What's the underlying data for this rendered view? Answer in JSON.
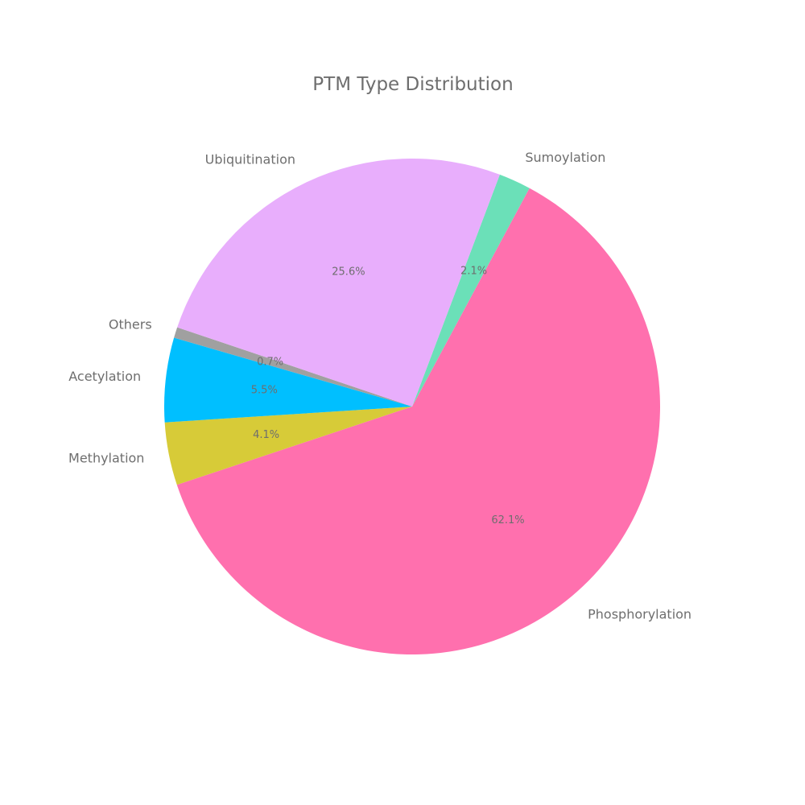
{
  "chart_data": {
    "type": "pie",
    "title": "PTM Type Distribution",
    "start_angle_deg": 69.3,
    "direction": "clockwise",
    "slices": [
      {
        "label": "Sumoylation",
        "value": 2.1,
        "pct_label": "2.1%",
        "color": "#6be0b8"
      },
      {
        "label": "Phosphorylation",
        "value": 62.1,
        "pct_label": "62.1%",
        "color": "#ff70ae"
      },
      {
        "label": "Methylation",
        "value": 4.1,
        "pct_label": "4.1%",
        "color": "#d7cb38"
      },
      {
        "label": "Acetylation",
        "value": 5.5,
        "pct_label": "5.5%",
        "color": "#00bfff"
      },
      {
        "label": "Others",
        "value": 0.7,
        "pct_label": "0.7%",
        "color": "#a0a0a0"
      },
      {
        "label": "Ubiquitination",
        "value": 25.6,
        "pct_label": "25.6%",
        "color": "#e8aefc"
      }
    ]
  }
}
